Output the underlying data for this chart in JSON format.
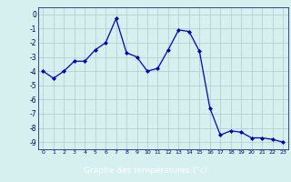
{
  "x": [
    0,
    1,
    2,
    3,
    4,
    5,
    6,
    7,
    8,
    9,
    10,
    11,
    12,
    13,
    14,
    15,
    16,
    17,
    18,
    19,
    20,
    21,
    22,
    23
  ],
  "y": [
    -4.0,
    -4.5,
    -4.0,
    -3.3,
    -3.3,
    -2.5,
    -2.0,
    -0.3,
    -2.7,
    -3.0,
    -4.0,
    -3.8,
    -2.5,
    -1.1,
    -1.2,
    -2.6,
    -6.6,
    -8.5,
    -8.2,
    -8.3,
    -8.7,
    -8.7,
    -8.8,
    -9.0
  ],
  "line_color": "#0000cc",
  "marker": "D",
  "marker_size": 2.0,
  "bg_color": "#d6f0f0",
  "grid_color": "#b0c8c8",
  "xlabel": "Graphe des températures (°c)",
  "xlabel_bg": "#0000aa",
  "xlabel_color": "#ffffff",
  "ylim": [
    -9.5,
    0.5
  ],
  "xlim": [
    -0.5,
    23.5
  ],
  "yticks": [
    0,
    -1,
    -2,
    -3,
    -4,
    -5,
    -6,
    -7,
    -8,
    -9
  ],
  "xticks": [
    0,
    1,
    2,
    3,
    4,
    5,
    6,
    7,
    8,
    9,
    10,
    11,
    12,
    13,
    14,
    15,
    16,
    17,
    18,
    19,
    20,
    21,
    22,
    23
  ]
}
